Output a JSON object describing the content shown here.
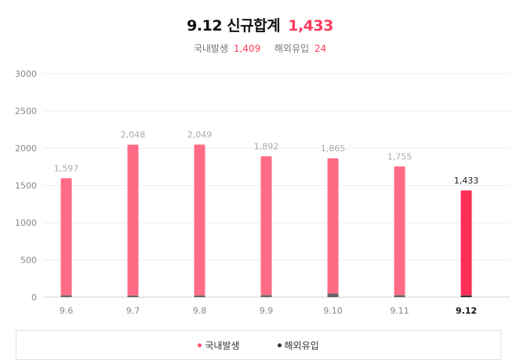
{
  "header": {
    "title_prefix": "9.12 신규합계",
    "title_total": "1,433",
    "domestic_label": "국내발생",
    "domestic_value": "1,409",
    "overseas_label": "해외유입",
    "overseas_value": "24"
  },
  "colors": {
    "domestic": "#ff6b85",
    "domestic_highlight": "#ff2f55",
    "overseas": "#666666",
    "overseas_highlight": "#333333",
    "accent": "#ff3b5c"
  },
  "chart_data": {
    "type": "bar",
    "stacked": true,
    "categories": [
      "9.6",
      "9.7",
      "9.8",
      "9.9",
      "9.10",
      "9.11",
      "9.12"
    ],
    "highlight_category": "9.12",
    "series": [
      {
        "name": "국내발생",
        "values": [
          1572,
          2025,
          2025,
          1865,
          1817,
          1728,
          1409
        ]
      },
      {
        "name": "해외유입",
        "values": [
          25,
          23,
          24,
          27,
          48,
          27,
          24
        ]
      }
    ],
    "totals_labels": [
      "1,597",
      "2,048",
      "2,049",
      "1,892",
      "1,865",
      "1,755",
      "1,433"
    ],
    "ylim": [
      0,
      3000
    ],
    "yticks": [
      "3000",
      "2500",
      "2000",
      "1500",
      "1000",
      "500",
      "0"
    ],
    "grid": true,
    "legend_position": "bottom"
  }
}
